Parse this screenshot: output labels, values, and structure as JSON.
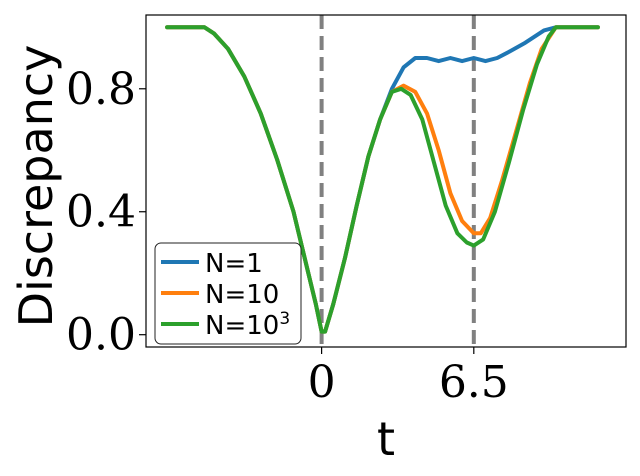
{
  "chart_data": {
    "type": "line",
    "xlabel": "t",
    "ylabel": "Discrepancy",
    "xlim": [
      -7.5,
      13.0
    ],
    "ylim": [
      -0.04,
      1.04
    ],
    "x_ticks": [
      {
        "value": 0,
        "label": "0"
      },
      {
        "value": 6.5,
        "label": "6.5"
      }
    ],
    "y_ticks": [
      {
        "value": 0.0,
        "label": "0.0"
      },
      {
        "value": 0.4,
        "label": "0.4"
      },
      {
        "value": 0.8,
        "label": "0.8"
      }
    ],
    "vlines": [
      0,
      6.5
    ],
    "grid": false,
    "legend_position": "lower-left",
    "series": [
      {
        "name": "N=1",
        "color": "#1f77b4",
        "points": [
          [
            -6.6,
            1.0
          ],
          [
            -5.0,
            1.0
          ],
          [
            -4.6,
            0.98
          ],
          [
            -4.0,
            0.93
          ],
          [
            -3.3,
            0.84
          ],
          [
            -2.6,
            0.72
          ],
          [
            -1.9,
            0.57
          ],
          [
            -1.2,
            0.4
          ],
          [
            -0.6,
            0.21
          ],
          [
            -0.25,
            0.1
          ],
          [
            0.0,
            0.01
          ],
          [
            0.15,
            0.01
          ],
          [
            0.5,
            0.1
          ],
          [
            1.0,
            0.25
          ],
          [
            1.5,
            0.42
          ],
          [
            2.0,
            0.58
          ],
          [
            2.5,
            0.7
          ],
          [
            3.0,
            0.8
          ],
          [
            3.5,
            0.87
          ],
          [
            4.0,
            0.9
          ],
          [
            4.5,
            0.9
          ],
          [
            5.0,
            0.89
          ],
          [
            5.5,
            0.9
          ],
          [
            6.0,
            0.89
          ],
          [
            6.5,
            0.9
          ],
          [
            7.0,
            0.89
          ],
          [
            7.5,
            0.9
          ],
          [
            8.0,
            0.92
          ],
          [
            8.7,
            0.95
          ],
          [
            9.5,
            0.99
          ],
          [
            10.0,
            1.0
          ],
          [
            11.8,
            1.0
          ]
        ]
      },
      {
        "name": "N=10",
        "color": "#ff7f0e",
        "points": [
          [
            -6.6,
            1.0
          ],
          [
            -5.0,
            1.0
          ],
          [
            -4.6,
            0.98
          ],
          [
            -4.0,
            0.93
          ],
          [
            -3.3,
            0.84
          ],
          [
            -2.6,
            0.72
          ],
          [
            -1.9,
            0.57
          ],
          [
            -1.2,
            0.4
          ],
          [
            -0.6,
            0.21
          ],
          [
            -0.25,
            0.1
          ],
          [
            0.0,
            0.01
          ],
          [
            0.15,
            0.01
          ],
          [
            0.5,
            0.1
          ],
          [
            1.0,
            0.25
          ],
          [
            1.5,
            0.42
          ],
          [
            2.0,
            0.58
          ],
          [
            2.5,
            0.7
          ],
          [
            3.0,
            0.79
          ],
          [
            3.5,
            0.81
          ],
          [
            4.0,
            0.79
          ],
          [
            4.5,
            0.72
          ],
          [
            5.0,
            0.6
          ],
          [
            5.5,
            0.46
          ],
          [
            6.0,
            0.37
          ],
          [
            6.5,
            0.33
          ],
          [
            6.8,
            0.33
          ],
          [
            7.2,
            0.38
          ],
          [
            7.7,
            0.5
          ],
          [
            8.3,
            0.66
          ],
          [
            8.9,
            0.82
          ],
          [
            9.4,
            0.93
          ],
          [
            10.0,
            1.0
          ],
          [
            11.8,
            1.0
          ]
        ]
      },
      {
        "name": "N=10³",
        "color": "#2ca02c",
        "points": [
          [
            -6.6,
            1.0
          ],
          [
            -5.0,
            1.0
          ],
          [
            -4.6,
            0.98
          ],
          [
            -4.0,
            0.93
          ],
          [
            -3.3,
            0.84
          ],
          [
            -2.6,
            0.72
          ],
          [
            -1.9,
            0.57
          ],
          [
            -1.2,
            0.4
          ],
          [
            -0.6,
            0.21
          ],
          [
            -0.25,
            0.1
          ],
          [
            0.0,
            0.01
          ],
          [
            0.15,
            0.01
          ],
          [
            0.5,
            0.1
          ],
          [
            1.0,
            0.25
          ],
          [
            1.5,
            0.42
          ],
          [
            2.0,
            0.58
          ],
          [
            2.5,
            0.7
          ],
          [
            3.0,
            0.79
          ],
          [
            3.4,
            0.8
          ],
          [
            3.8,
            0.78
          ],
          [
            4.3,
            0.7
          ],
          [
            4.8,
            0.56
          ],
          [
            5.3,
            0.42
          ],
          [
            5.8,
            0.33
          ],
          [
            6.2,
            0.3
          ],
          [
            6.5,
            0.29
          ],
          [
            6.9,
            0.31
          ],
          [
            7.4,
            0.4
          ],
          [
            8.0,
            0.56
          ],
          [
            8.6,
            0.73
          ],
          [
            9.2,
            0.88
          ],
          [
            9.7,
            0.97
          ],
          [
            10.0,
            1.0
          ],
          [
            11.8,
            1.0
          ]
        ]
      }
    ]
  },
  "legend": {
    "items": [
      {
        "prefix": "N=",
        "value": "1",
        "sup": ""
      },
      {
        "prefix": "N=",
        "value": "10",
        "sup": ""
      },
      {
        "prefix": "N=",
        "value": "10",
        "sup": "3"
      }
    ]
  }
}
